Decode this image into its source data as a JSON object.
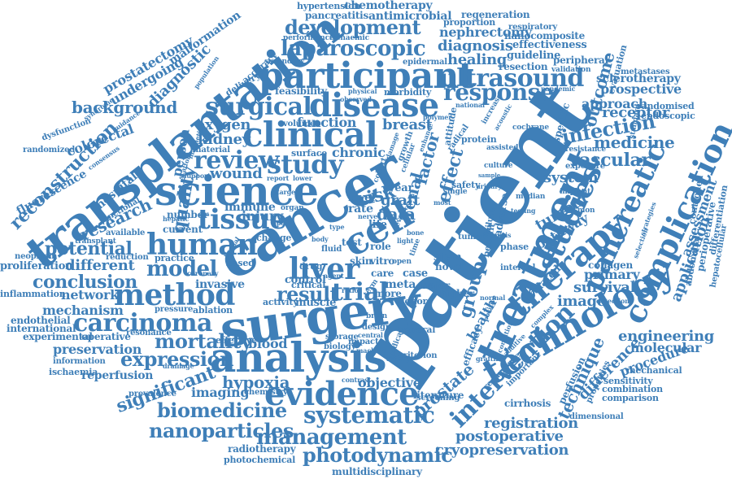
{
  "colors": {
    "word": "#3f7fb8",
    "background": "#ffffff"
  },
  "words": {
    "patient": "patient",
    "cancer": "cancer",
    "transplantation": "transplantation",
    "surgery": "surgery",
    "analysis": "analysis",
    "science": "science",
    "treatment": "treatment",
    "technology": "technology",
    "participant": "participant",
    "disease": "disease",
    "clinical": "clinical",
    "cell": "cell",
    "human": "human",
    "liver": "liver",
    "therapy": "therapy",
    "evidence": "evidence",
    "method": "method",
    "carcinoma": "carcinoma",
    "studies": "studies",
    "tissue": "tissue",
    "study": "study",
    "review": "review",
    "complication": "complication",
    "pancreatic": "pancreatic",
    "laparoscopic": "laparoscopic",
    "ultrasound": "ultrasound",
    "response": "response",
    "surgical": "surgical",
    "intervention": "intervention",
    "systematic": "systematic",
    "management": "management",
    "photodynamic": "photodynamic",
    "nanoparticles": "nanoparticles",
    "biomedicine": "biomedicine",
    "expression": "expression",
    "mortality": "mortality",
    "model": "model",
    "conclusion": "conclusion",
    "development": "development",
    "reconstruction": "reconstruction",
    "trial": "trial",
    "result": "result",
    "infection": "infection",
    "vascular": "vascular",
    "medicine": "medicine",
    "engineering": "engineering",
    "significant": "significant",
    "background": "background",
    "quality": "quality",
    "research": "research",
    "potential": "potential",
    "different": "different",
    "kidney": "kidney",
    "oxygen": "oxygen",
    "hypoxia": "hypoxia",
    "imaging": "imaging",
    "blood": "blood",
    "diagnostic": "diagnostic",
    "postoperative": "postoperative",
    "cryopreservation": "cryopreservation",
    "registration": "registration",
    "technique": "technique",
    "outcome": "outcome",
    "assessment": "assessment",
    "application": "application",
    "tumour": "tumour",
    "system": "system",
    "pathway": "pathway",
    "prostate": "prostate",
    "survival": "survival",
    "primary": "primary",
    "image": "image",
    "difference": "difference",
    "procedure": "procedure",
    "molecular": "molecular",
    "approach": "approach",
    "receptor": "receptor",
    "prospective": "prospective",
    "sclerotherapy": "sclerotherapy",
    "diagnosis": "diagnosis",
    "nephrectomy": "nephrectomy",
    "healing": "healing",
    "group": "group",
    "factor": "factor",
    "effect": "effect",
    "data": "data",
    "renal": "renal",
    "graft": "graft",
    "risk": "risk",
    "breast": "breast",
    "function": "function",
    "chronic": "chronic",
    "wound": "wound",
    "person": "person",
    "injury": "injury",
    "immune": "immune",
    "objective": "objective",
    "literature": "literature",
    "invasive": "invasive",
    "mechanism": "mechanism",
    "network": "network",
    "preservation": "preservation",
    "reperfusion": "reperfusion",
    "colorectal": "colorectal",
    "fluorescence": "fluorescence",
    "hospital": "hospital",
    "undergoing": "undergoing",
    "prostatectomy": "prostatectomy",
    "malformation": "malformation",
    "chemotherapy": "chemotherapy",
    "hypertension": "hypertension",
    "pancreatitis": "pancreatitis",
    "antimicrobial": "antimicrobial",
    "regeneration": "regeneration",
    "proportion": "proportion",
    "respiratory": "respiratory",
    "nanocomposite": "nanocomposite",
    "effectiveness": "effectiveness",
    "guideline": "guideline",
    "resection": "resection",
    "peripheral": "peripheral",
    "evaluation": "evaluation",
    "metastases": "metastases",
    "randomised": "randomised",
    "endoscopic": "endoscopic",
    "perioperative": "perioperative",
    "differentiation": "differentiation",
    "controlled": "controlled",
    "abdominal": "abdominal",
    "hepatocellular": "hepatocellular",
    "collagen": "collagen",
    "perfusion": "perfusion",
    "cirrhosis": "cirrhosis",
    "mechanical": "mechanical",
    "sensitivity": "sensitivity",
    "combination": "combination",
    "comparison": "comparison",
    "properties": "properties",
    "dimensional": "dimensional",
    "radiotherapy": "radiotherapy",
    "photochemical": "photochemical",
    "multidisciplinary": "multidisciplinary",
    "proliferation": "proliferation",
    "inflammation": "inflammation",
    "endothelial": "endothelial",
    "international": "international",
    "experimental": "experimental",
    "operative": "operative",
    "information": "information",
    "ischaemia": "ischaemia",
    "prevalence": "prevalence",
    "neoplasm": "neoplasm",
    "transplant": "transplant",
    "randomized": "randomized",
    "dysfunction": "dysfunction",
    "feasibility": "feasibility",
    "morbidity": "morbidity",
    "epidermal": "epidermal",
    "performance": "performance",
    "ischaemic": "ischaemic",
    "delivery": "delivery",
    "accuracy": "accuracy",
    "secondary": "secondary",
    "volume": "volume",
    "surface": "surface",
    "material": "material",
    "number": "number",
    "current": "current",
    "practice": "practice",
    "reduction": "reduction",
    "available": "available",
    "pressure": "pressure",
    "ablation": "ablation",
    "resonance": "resonance",
    "effective": "effective",
    "chemistry": "chemistry",
    "control": "control",
    "activity": "activity",
    "muscle": "muscle",
    "critical": "critical",
    "drug": "drug",
    "change": "change",
    "based": "based",
    "level": "level",
    "rate": "rate",
    "year": "year",
    "life": "life",
    "test": "test",
    "role": "role",
    "case": "case",
    "meta": "meta",
    "care": "care",
    "more": "more",
    "major": "major",
    "stem": "stem",
    "novel": "novel",
    "higher": "higher",
    "donor": "donor",
    "general": "general",
    "design": "design",
    "impact": "impact",
    "storage": "storage",
    "biology": "biology",
    "criterion": "criterion",
    "screening": "screening",
    "adverse": "adverse",
    "benefit": "benefit",
    "health": "health",
    "efficacy": "efficacy",
    "safety": "safety",
    "tumor": "tumor",
    "protein": "protein",
    "attitude": "attitude",
    "specific": "specific",
    "related": "related",
    "important": "important",
    "phase": "phase",
    "internal": "internal",
    "implant": "implant",
    "median": "median",
    "exposure": "exposure",
    "resistance": "resistance",
    "standard": "standard",
    "validation": "validation",
    "detection": "detection",
    "grafting": "grafting",
    "recurrence": "recurrence",
    "testing": "testing",
    "culture": "culture",
    "assisted": "assisted",
    "cochrane": "cochrane",
    "vitro": "vitro",
    "skin": "skin",
    "open": "open",
    "brain": "brain",
    "artery": "artery",
    "contrast": "contrast",
    "coronary": "coronary",
    "drainage": "drainage",
    "guidance": "guidance",
    "functional": "functional",
    "consensus": "consensus",
    "syndrome": "syndrome",
    "population": "population",
    "support": "support",
    "scaffold": "scaffold",
    "magnetic": "magnetic",
    "physical": "physical",
    "observed": "observed",
    "polymer": "polymer",
    "cohort": "cohort",
    "single": "single",
    "urinary": "urinary",
    "failure": "failure",
    "fibrosis": "fibrosis",
    "normal": "normal",
    "target": "target",
    "lower": "lower",
    "hepatic": "hepatic",
    "national": "national",
    "machine": "machine",
    "central": "central",
    "medical": "medical",
    "radical": "radical",
    "increase": "increase",
    "acoustic": "acoustic",
    "pandemic": "pandemic",
    "plasmon": "plasmon",
    "selection": "selection",
    "strategies": "strategies",
    "complex": "complex",
    "condition": "condition",
    "positive": "positive",
    "additive": "additive",
    "damage": "damage",
    "growth": "growth",
    "cellular": "cellular",
    "enhance": "enhance",
    "partial": "partial",
    "agent": "agent",
    "ratio": "ratio",
    "term": "term",
    "event": "event",
    "light": "light",
    "bone": "bone",
    "report": "report",
    "type": "type",
    "time": "time",
    "body": "body",
    "fluid": "fluid",
    "sample": "sample",
    "pain": "pain",
    "organ": "organ",
    "nerve": "nerve",
    "most": "most",
    "food": "food",
    "loss": "loss",
    "stage": "stage",
    "model2": "marker"
  }
}
